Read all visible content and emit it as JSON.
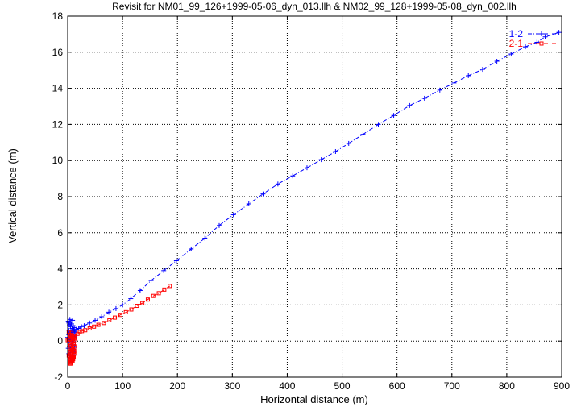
{
  "chart_data": {
    "type": "scatter",
    "title": "Revisit for NM01_99_126+1999-05-06_dyn_013.llh & NM02_99_128+1999-05-08_dyn_002.llh",
    "xlabel": "Horizontal distance (m)",
    "ylabel": "Vertical distance (m)",
    "xlim": [
      0,
      900
    ],
    "ylim": [
      -2,
      18
    ],
    "x_ticks": [
      0,
      100,
      200,
      300,
      400,
      500,
      600,
      700,
      800,
      900
    ],
    "y_ticks": [
      -2,
      0,
      2,
      4,
      6,
      8,
      10,
      12,
      14,
      16,
      18
    ],
    "grid": true,
    "legend_position": "top-right",
    "series": [
      {
        "name": "1-2",
        "color": "#0000ff",
        "marker": "plus",
        "line": "dash-dot",
        "x": [
          0,
          2,
          4,
          6,
          8,
          10,
          12,
          15,
          20,
          25,
          30,
          40,
          50,
          62,
          75,
          88,
          100,
          115,
          132,
          152,
          175,
          198,
          225,
          250,
          276,
          302,
          330,
          356,
          383,
          410,
          436,
          462,
          488,
          512,
          538,
          566,
          594,
          623,
          650,
          678,
          704,
          730,
          756,
          782,
          808,
          834,
          855,
          870,
          895
        ],
        "y": [
          0.2,
          0.35,
          0.5,
          0.6,
          0.5,
          0.55,
          0.6,
          0.65,
          0.7,
          0.8,
          0.85,
          1.0,
          1.15,
          1.35,
          1.6,
          1.8,
          2.0,
          2.35,
          2.8,
          3.35,
          3.9,
          4.45,
          5.1,
          5.7,
          6.4,
          7.0,
          7.6,
          8.15,
          8.7,
          9.15,
          9.6,
          10.05,
          10.5,
          10.95,
          11.45,
          12.0,
          12.5,
          13.05,
          13.45,
          13.9,
          14.3,
          14.7,
          15.05,
          15.5,
          15.9,
          16.3,
          16.55,
          16.85,
          17.1
        ]
      },
      {
        "name": "2-1",
        "color": "#ff0000",
        "marker": "open-square",
        "line": "dash-dot",
        "x": [
          0,
          2,
          4,
          6,
          8,
          10,
          14,
          18,
          22,
          26,
          32,
          40,
          48,
          56,
          66,
          76,
          86,
          96,
          106,
          116,
          126,
          136,
          146,
          156,
          166,
          176,
          186
        ],
        "y": [
          0.05,
          0.1,
          0.15,
          0.2,
          0.2,
          0.25,
          0.3,
          0.4,
          0.5,
          0.55,
          0.6,
          0.7,
          0.8,
          0.9,
          1.0,
          1.15,
          1.3,
          1.45,
          1.6,
          1.75,
          1.95,
          2.1,
          2.3,
          2.5,
          2.65,
          2.85,
          3.05
        ]
      },
      {
        "name": "1-2",
        "color": "#0000ff",
        "marker": "plus",
        "line": "none",
        "x": [
          1,
          2,
          3,
          4,
          5,
          6,
          7,
          8,
          9,
          10,
          11,
          12,
          13,
          2,
          4,
          6,
          8,
          10,
          12,
          3,
          5,
          7,
          9,
          11,
          2,
          4,
          6,
          8,
          10,
          1,
          3,
          5,
          7,
          9,
          11,
          13,
          2,
          4,
          6,
          8,
          10,
          12
        ],
        "y": [
          1.1,
          1.0,
          0.9,
          1.2,
          0.8,
          1.05,
          0.95,
          0.7,
          1.15,
          0.85,
          0.6,
          0.75,
          0.5,
          0.6,
          0.4,
          0.5,
          0.3,
          0.45,
          0.2,
          0.2,
          0.1,
          0.35,
          0.05,
          0.25,
          -0.1,
          0.0,
          -0.2,
          0.1,
          -0.05,
          -0.4,
          -0.3,
          -0.5,
          -0.35,
          -0.6,
          -0.45,
          -0.3,
          -0.7,
          -0.8,
          -0.65,
          -0.9,
          -0.75,
          -0.55
        ]
      },
      {
        "name": "2-1",
        "color": "#ff0000",
        "marker": "open-square",
        "line": "none",
        "x": [
          2,
          3,
          4,
          5,
          6,
          7,
          8,
          9,
          10,
          11,
          12,
          13,
          14,
          3,
          5,
          7,
          9,
          11,
          13,
          4,
          6,
          8,
          10,
          12,
          3,
          5,
          7,
          9,
          11,
          2,
          4,
          6,
          8,
          10,
          12,
          3,
          5,
          7,
          9,
          11,
          4,
          6,
          8,
          10,
          5,
          7,
          9
        ],
        "y": [
          0.5,
          0.3,
          0.1,
          0.35,
          0.2,
          0.45,
          0.25,
          0.05,
          0.15,
          0.3,
          0.1,
          0.2,
          0.0,
          -0.1,
          -0.2,
          -0.05,
          -0.25,
          -0.15,
          -0.3,
          -0.4,
          -0.35,
          -0.5,
          -0.45,
          -0.55,
          -0.6,
          -0.7,
          -0.65,
          -0.75,
          -0.6,
          -0.8,
          -0.85,
          -0.9,
          -0.95,
          -0.85,
          -0.7,
          -1.0,
          -1.05,
          -0.95,
          -1.1,
          -0.9,
          -1.15,
          -1.2,
          -1.05,
          -1.0,
          -1.25,
          -1.1,
          -0.95
        ]
      }
    ]
  }
}
